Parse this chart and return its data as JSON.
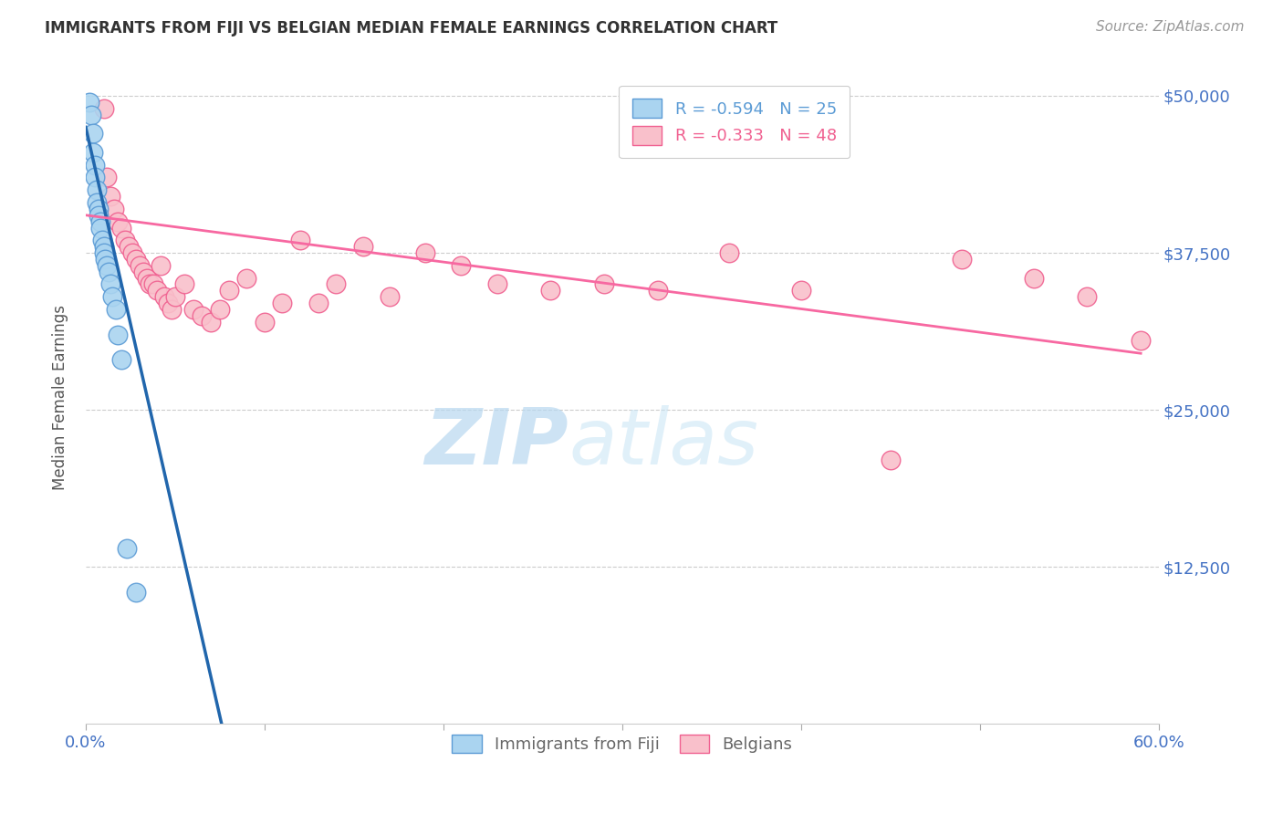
{
  "title": "IMMIGRANTS FROM FIJI VS BELGIAN MEDIAN FEMALE EARNINGS CORRELATION CHART",
  "source": "Source: ZipAtlas.com",
  "ylabel": "Median Female Earnings",
  "ytick_labels": [
    "$12,500",
    "$25,000",
    "$37,500",
    "$50,000"
  ],
  "ytick_values": [
    12500,
    25000,
    37500,
    50000
  ],
  "ylim": [
    0,
    52000
  ],
  "xlim": [
    0.0,
    0.6
  ],
  "fiji_R": "-0.594",
  "fiji_N": "25",
  "belgians_R": "-0.333",
  "belgians_N": "48",
  "fiji_color": "#aad4f0",
  "fiji_edge_color": "#5b9bd5",
  "belgians_color": "#f9c0cb",
  "belgians_edge_color": "#f06090",
  "trend_fiji_solid_color": "#2166ac",
  "trend_fiji_dash_color": "#7ab3d8",
  "trend_belgians_color": "#f768a1",
  "fiji_scatter_x": [
    0.002,
    0.003,
    0.004,
    0.004,
    0.005,
    0.005,
    0.006,
    0.006,
    0.007,
    0.007,
    0.008,
    0.008,
    0.009,
    0.01,
    0.01,
    0.011,
    0.012,
    0.013,
    0.014,
    0.015,
    0.017,
    0.018,
    0.02,
    0.023,
    0.028
  ],
  "fiji_scatter_y": [
    49500,
    48500,
    47000,
    45500,
    44500,
    43500,
    42500,
    41500,
    41000,
    40500,
    40000,
    39500,
    38500,
    38000,
    37500,
    37000,
    36500,
    36000,
    35000,
    34000,
    33000,
    31000,
    29000,
    14000,
    10500
  ],
  "belgians_scatter_x": [
    0.01,
    0.012,
    0.014,
    0.016,
    0.018,
    0.02,
    0.022,
    0.024,
    0.026,
    0.028,
    0.03,
    0.032,
    0.034,
    0.036,
    0.038,
    0.04,
    0.042,
    0.044,
    0.046,
    0.048,
    0.05,
    0.055,
    0.06,
    0.065,
    0.07,
    0.075,
    0.08,
    0.09,
    0.1,
    0.11,
    0.12,
    0.13,
    0.14,
    0.155,
    0.17,
    0.19,
    0.21,
    0.23,
    0.26,
    0.29,
    0.32,
    0.36,
    0.4,
    0.45,
    0.49,
    0.53,
    0.56,
    0.59
  ],
  "belgians_scatter_y": [
    49000,
    43500,
    42000,
    41000,
    40000,
    39500,
    38500,
    38000,
    37500,
    37000,
    36500,
    36000,
    35500,
    35000,
    35000,
    34500,
    36500,
    34000,
    33500,
    33000,
    34000,
    35000,
    33000,
    32500,
    32000,
    33000,
    34500,
    35500,
    32000,
    33500,
    38500,
    33500,
    35000,
    38000,
    34000,
    37500,
    36500,
    35000,
    34500,
    35000,
    34500,
    37500,
    34500,
    21000,
    37000,
    35500,
    34000,
    30500
  ],
  "fiji_trend_x0": 0.0,
  "fiji_trend_y0": 47500,
  "fiji_trend_x1": 0.028,
  "fiji_trend_y1": 30000,
  "fiji_trend_slope": -625000,
  "fiji_trend_intercept": 47500,
  "belgians_trend_x0": 0.0,
  "belgians_trend_y0": 40500,
  "belgians_trend_x1": 0.59,
  "belgians_trend_y1": 29500,
  "background_color": "#ffffff",
  "grid_color": "#cccccc",
  "title_color": "#333333",
  "ytick_color": "#4472c4",
  "xtick_color": "#4472c4"
}
